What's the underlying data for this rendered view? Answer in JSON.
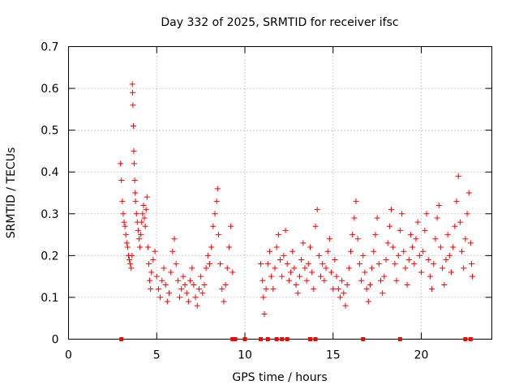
{
  "chart_data": {
    "type": "scatter",
    "title": "Day 332 of 2025, SRMTID for receiver ifsc",
    "xlabel": "GPS time / hours",
    "ylabel": "SRMTID / TECUs",
    "xlim": [
      0,
      24
    ],
    "ylim": [
      0,
      0.7
    ],
    "xticks": [
      0,
      5,
      10,
      15,
      20
    ],
    "yticks": [
      0,
      0.1,
      0.2,
      0.3,
      0.4,
      0.5,
      0.6,
      0.7
    ],
    "grid": true,
    "marker": "+",
    "series": [
      {
        "name": "SRMTID",
        "color": "#ff0000",
        "points": [
          [
            2.95,
            0.42
          ],
          [
            3.0,
            0.38
          ],
          [
            3.05,
            0.33
          ],
          [
            3.1,
            0.3
          ],
          [
            3.15,
            0.28
          ],
          [
            3.2,
            0.27
          ],
          [
            3.25,
            0.25
          ],
          [
            3.3,
            0.23
          ],
          [
            3.35,
            0.22
          ],
          [
            3.4,
            0.2
          ],
          [
            3.45,
            0.19
          ],
          [
            3.5,
            0.18
          ],
          [
            3.55,
            0.17
          ],
          [
            3.6,
            0.2
          ],
          [
            3.62,
            0.61
          ],
          [
            3.63,
            0.59
          ],
          [
            3.65,
            0.56
          ],
          [
            3.68,
            0.51
          ],
          [
            3.7,
            0.45
          ],
          [
            3.72,
            0.42
          ],
          [
            3.75,
            0.38
          ],
          [
            3.78,
            0.35
          ],
          [
            3.8,
            0.33
          ],
          [
            3.85,
            0.3
          ],
          [
            3.9,
            0.28
          ],
          [
            3.95,
            0.26
          ],
          [
            4.0,
            0.24
          ],
          [
            4.05,
            0.22
          ],
          [
            4.1,
            0.25
          ],
          [
            4.15,
            0.28
          ],
          [
            4.2,
            0.3
          ],
          [
            4.25,
            0.32
          ],
          [
            4.3,
            0.29
          ],
          [
            4.35,
            0.27
          ],
          [
            4.4,
            0.31
          ],
          [
            4.45,
            0.34
          ],
          [
            4.5,
            0.22
          ],
          [
            4.55,
            0.18
          ],
          [
            4.6,
            0.14
          ],
          [
            4.65,
            0.12
          ],
          [
            4.7,
            0.16
          ],
          [
            4.8,
            0.19
          ],
          [
            4.9,
            0.21
          ],
          [
            5.0,
            0.15
          ],
          [
            5.1,
            0.12
          ],
          [
            5.2,
            0.1
          ],
          [
            5.3,
            0.14
          ],
          [
            5.4,
            0.17
          ],
          [
            5.5,
            0.13
          ],
          [
            5.6,
            0.09
          ],
          [
            5.7,
            0.11
          ],
          [
            5.8,
            0.16
          ],
          [
            5.9,
            0.21
          ],
          [
            6.0,
            0.24
          ],
          [
            6.1,
            0.18
          ],
          [
            6.2,
            0.14
          ],
          [
            6.3,
            0.1
          ],
          [
            6.4,
            0.12
          ],
          [
            6.5,
            0.15
          ],
          [
            6.6,
            0.13
          ],
          [
            6.7,
            0.11
          ],
          [
            6.8,
            0.09
          ],
          [
            6.9,
            0.14
          ],
          [
            7.0,
            0.17
          ],
          [
            7.1,
            0.13
          ],
          [
            7.2,
            0.1
          ],
          [
            7.3,
            0.08
          ],
          [
            7.4,
            0.12
          ],
          [
            7.5,
            0.15
          ],
          [
            7.6,
            0.11
          ],
          [
            7.7,
            0.13
          ],
          [
            7.8,
            0.17
          ],
          [
            7.9,
            0.2
          ],
          [
            8.0,
            0.18
          ],
          [
            8.1,
            0.22
          ],
          [
            8.2,
            0.27
          ],
          [
            8.3,
            0.3
          ],
          [
            8.4,
            0.33
          ],
          [
            8.45,
            0.36
          ],
          [
            8.5,
            0.25
          ],
          [
            8.6,
            0.18
          ],
          [
            8.7,
            0.12
          ],
          [
            8.8,
            0.09
          ],
          [
            8.9,
            0.13
          ],
          [
            9.0,
            0.17
          ],
          [
            9.1,
            0.22
          ],
          [
            9.2,
            0.27
          ],
          [
            9.3,
            0.16
          ],
          [
            10.9,
            0.18
          ],
          [
            11.0,
            0.14
          ],
          [
            11.05,
            0.1
          ],
          [
            11.1,
            0.06
          ],
          [
            11.2,
            0.12
          ],
          [
            11.3,
            0.18
          ],
          [
            11.4,
            0.21
          ],
          [
            11.5,
            0.15
          ],
          [
            11.6,
            0.12
          ],
          [
            11.7,
            0.17
          ],
          [
            11.8,
            0.22
          ],
          [
            11.9,
            0.25
          ],
          [
            12.0,
            0.19
          ],
          [
            12.1,
            0.15
          ],
          [
            12.2,
            0.2
          ],
          [
            12.3,
            0.26
          ],
          [
            12.4,
            0.18
          ],
          [
            12.5,
            0.14
          ],
          [
            12.6,
            0.16
          ],
          [
            12.7,
            0.21
          ],
          [
            12.8,
            0.17
          ],
          [
            12.9,
            0.13
          ],
          [
            13.0,
            0.11
          ],
          [
            13.1,
            0.15
          ],
          [
            13.2,
            0.19
          ],
          [
            13.3,
            0.23
          ],
          [
            13.4,
            0.17
          ],
          [
            13.5,
            0.14
          ],
          [
            13.6,
            0.18
          ],
          [
            13.7,
            0.22
          ],
          [
            13.8,
            0.16
          ],
          [
            13.9,
            0.12
          ],
          [
            14.0,
            0.27
          ],
          [
            14.1,
            0.31
          ],
          [
            14.2,
            0.2
          ],
          [
            14.3,
            0.15
          ],
          [
            14.4,
            0.18
          ],
          [
            14.5,
            0.14
          ],
          [
            14.6,
            0.17
          ],
          [
            14.7,
            0.21
          ],
          [
            14.8,
            0.24
          ],
          [
            14.9,
            0.16
          ],
          [
            15.0,
            0.12
          ],
          [
            15.1,
            0.19
          ],
          [
            15.2,
            0.15
          ],
          [
            15.3,
            0.12
          ],
          [
            15.4,
            0.1
          ],
          [
            15.5,
            0.14
          ],
          [
            15.6,
            0.11
          ],
          [
            15.7,
            0.08
          ],
          [
            15.8,
            0.13
          ],
          [
            15.9,
            0.17
          ],
          [
            16.0,
            0.21
          ],
          [
            16.1,
            0.25
          ],
          [
            16.2,
            0.29
          ],
          [
            16.3,
            0.33
          ],
          [
            16.4,
            0.24
          ],
          [
            16.5,
            0.18
          ],
          [
            16.6,
            0.14
          ],
          [
            16.7,
            0.2
          ],
          [
            16.8,
            0.16
          ],
          [
            16.9,
            0.12
          ],
          [
            17.0,
            0.09
          ],
          [
            17.1,
            0.13
          ],
          [
            17.2,
            0.17
          ],
          [
            17.3,
            0.21
          ],
          [
            17.4,
            0.25
          ],
          [
            17.5,
            0.29
          ],
          [
            17.6,
            0.18
          ],
          [
            17.7,
            0.14
          ],
          [
            17.8,
            0.11
          ],
          [
            17.9,
            0.15
          ],
          [
            18.0,
            0.19
          ],
          [
            18.1,
            0.23
          ],
          [
            18.2,
            0.27
          ],
          [
            18.3,
            0.31
          ],
          [
            18.4,
            0.22
          ],
          [
            18.5,
            0.18
          ],
          [
            18.6,
            0.14
          ],
          [
            18.7,
            0.2
          ],
          [
            18.8,
            0.26
          ],
          [
            18.9,
            0.3
          ],
          [
            19.0,
            0.21
          ],
          [
            19.1,
            0.17
          ],
          [
            19.2,
            0.13
          ],
          [
            19.3,
            0.19
          ],
          [
            19.4,
            0.25
          ],
          [
            19.5,
            0.22
          ],
          [
            19.6,
            0.18
          ],
          [
            19.7,
            0.24
          ],
          [
            19.8,
            0.28
          ],
          [
            19.9,
            0.2
          ],
          [
            20.0,
            0.16
          ],
          [
            20.1,
            0.21
          ],
          [
            20.2,
            0.26
          ],
          [
            20.3,
            0.3
          ],
          [
            20.4,
            0.19
          ],
          [
            20.5,
            0.15
          ],
          [
            20.6,
            0.12
          ],
          [
            20.7,
            0.18
          ],
          [
            20.8,
            0.24
          ],
          [
            20.9,
            0.29
          ],
          [
            21.0,
            0.32
          ],
          [
            21.1,
            0.22
          ],
          [
            21.2,
            0.17
          ],
          [
            21.3,
            0.13
          ],
          [
            21.4,
            0.19
          ],
          [
            21.5,
            0.25
          ],
          [
            21.6,
            0.2
          ],
          [
            21.7,
            0.16
          ],
          [
            21.8,
            0.22
          ],
          [
            21.9,
            0.27
          ],
          [
            22.0,
            0.33
          ],
          [
            22.1,
            0.39
          ],
          [
            22.2,
            0.28
          ],
          [
            22.3,
            0.21
          ],
          [
            22.4,
            0.17
          ],
          [
            22.5,
            0.24
          ],
          [
            22.6,
            0.3
          ],
          [
            22.7,
            0.35
          ],
          [
            22.8,
            0.23
          ],
          [
            22.85,
            0.18
          ],
          [
            22.9,
            0.15
          ]
        ]
      }
    ],
    "gap_markers": [
      3.0,
      9.3,
      9.45,
      10.0,
      10.9,
      11.3,
      11.8,
      12.1,
      12.4,
      13.7,
      14.0,
      16.7,
      18.8,
      22.5,
      22.8
    ]
  }
}
